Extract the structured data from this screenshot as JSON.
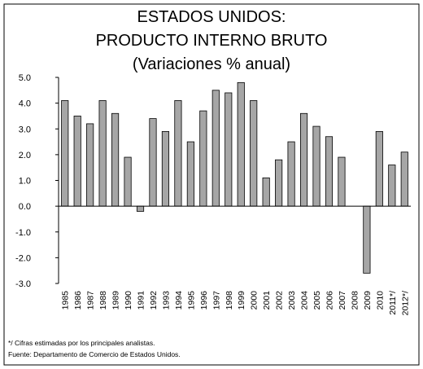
{
  "chart_data": {
    "type": "bar",
    "title": [
      "ESTADOS UNIDOS:",
      "PRODUCTO INTERNO BRUTO",
      "(Variaciones % anual)"
    ],
    "categories": [
      "1985",
      "1986",
      "1987",
      "1988",
      "1989",
      "1990",
      "1991",
      "1992",
      "1993",
      "1994",
      "1995",
      "1996",
      "1997",
      "1998",
      "1999",
      "2000",
      "2001",
      "2002",
      "2003",
      "2004",
      "2005",
      "2006",
      "2007",
      "2008",
      "2009",
      "2010",
      "2011*/",
      "2012*/"
    ],
    "values": [
      4.1,
      3.5,
      3.2,
      4.1,
      3.6,
      1.9,
      -0.2,
      3.4,
      2.9,
      4.1,
      2.5,
      3.7,
      4.5,
      4.4,
      4.8,
      4.1,
      1.1,
      1.8,
      2.5,
      3.6,
      3.1,
      2.7,
      1.9,
      0.0,
      -2.6,
      2.9,
      1.6,
      2.1
    ],
    "color": "#a6a6a6",
    "ylim": [
      -3,
      5
    ],
    "yticks": [
      {
        "value": -3,
        "label": "-3.0"
      },
      {
        "value": -2,
        "label": "-2.0"
      },
      {
        "value": -1,
        "label": "-1.0"
      },
      {
        "value": 0,
        "label": "0.0"
      },
      {
        "value": 1,
        "label": "1.0"
      },
      {
        "value": 2,
        "label": "2.0"
      },
      {
        "value": 3,
        "label": "3.0"
      },
      {
        "value": 4,
        "label": "4.0"
      },
      {
        "value": 5,
        "label": "5.0"
      }
    ],
    "notes": [
      "*/ Cifras estimadas por los principales analistas.",
      "Fuente: Departamento de Comercio de Estados Unidos."
    ]
  }
}
